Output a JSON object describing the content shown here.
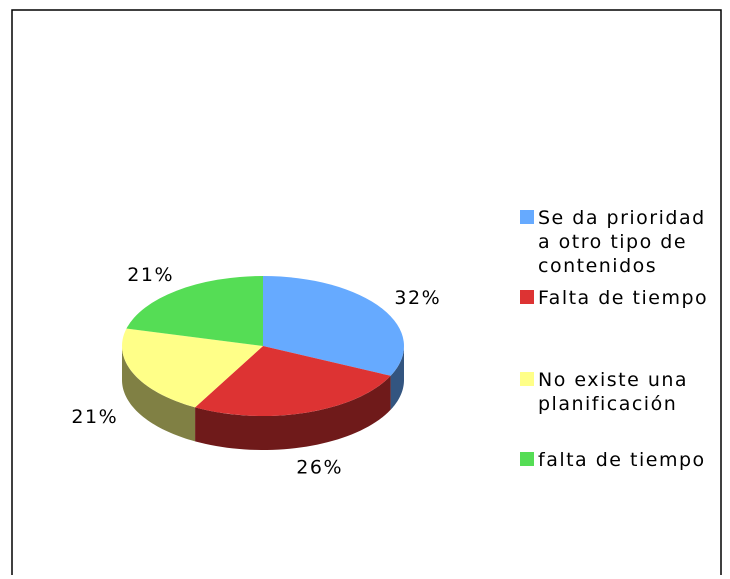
{
  "chart_data": {
    "type": "pie",
    "categories": [
      "Se da prioridad a otro tipo de contenidos",
      "Falta de tiempo",
      "No existe una planificación",
      "falta de tiempo"
    ],
    "values": [
      32,
      26,
      21,
      21
    ],
    "value_labels": [
      "32%",
      "26%",
      "21%",
      "21%"
    ],
    "colors": [
      "#66aaff",
      "#dd3333",
      "#ffff88",
      "#55dd55"
    ],
    "legend": "right"
  }
}
